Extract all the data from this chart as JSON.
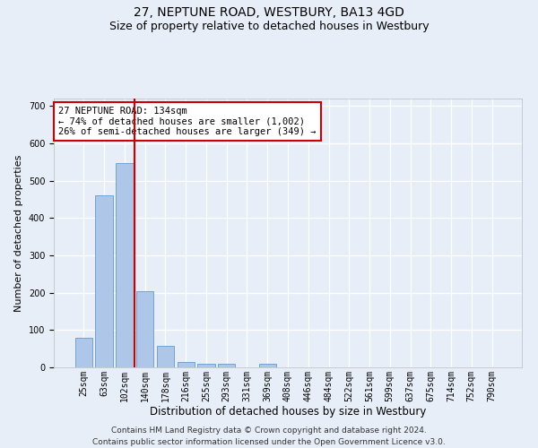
{
  "title1": "27, NEPTUNE ROAD, WESTBURY, BA13 4GD",
  "title2": "Size of property relative to detached houses in Westbury",
  "xlabel": "Distribution of detached houses by size in Westbury",
  "ylabel": "Number of detached properties",
  "bar_labels": [
    "25sqm",
    "63sqm",
    "102sqm",
    "140sqm",
    "178sqm",
    "216sqm",
    "255sqm",
    "293sqm",
    "331sqm",
    "369sqm",
    "408sqm",
    "446sqm",
    "484sqm",
    "522sqm",
    "561sqm",
    "599sqm",
    "637sqm",
    "675sqm",
    "714sqm",
    "752sqm",
    "790sqm"
  ],
  "bar_values": [
    79,
    462,
    548,
    204,
    57,
    15,
    10,
    10,
    0,
    9,
    0,
    0,
    0,
    0,
    0,
    0,
    0,
    0,
    0,
    0,
    0
  ],
  "bar_color": "#aec6e8",
  "bar_edge_color": "#6699cc",
  "background_color": "#e8eef8",
  "grid_color": "#ffffff",
  "vline_color": "#cc0000",
  "annotation_text": "27 NEPTUNE ROAD: 134sqm\n← 74% of detached houses are smaller (1,002)\n26% of semi-detached houses are larger (349) →",
  "annotation_box_color": "#ffffff",
  "annotation_box_edge": "#cc0000",
  "ylim": [
    0,
    720
  ],
  "yticks": [
    0,
    100,
    200,
    300,
    400,
    500,
    600,
    700
  ],
  "footnote": "Contains HM Land Registry data © Crown copyright and database right 2024.\nContains public sector information licensed under the Open Government Licence v3.0.",
  "title1_fontsize": 10,
  "title2_fontsize": 9,
  "xlabel_fontsize": 8.5,
  "ylabel_fontsize": 8,
  "tick_fontsize": 7,
  "annotation_fontsize": 7.5,
  "footnote_fontsize": 6.5
}
